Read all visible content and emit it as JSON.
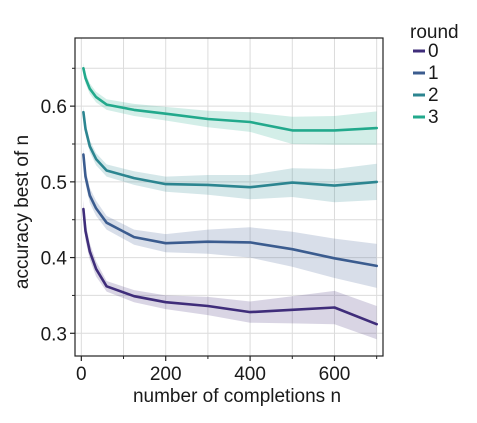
{
  "chart_data": {
    "type": "line",
    "title": "",
    "xlabel": "number of completions n",
    "ylabel": "accuracy best of n",
    "xlim": [
      -15,
      715
    ],
    "ylim": [
      0.27,
      0.69
    ],
    "xticks": [
      0,
      200,
      400,
      600
    ],
    "xtick_labels": [
      "0",
      "200",
      "400",
      "600"
    ],
    "yticks": [
      0.3,
      0.4,
      0.5,
      0.6
    ],
    "ytick_labels": [
      "0.3",
      "0.4",
      "0.5",
      "0.6"
    ],
    "x_minor_ticks": [
      100,
      300,
      500,
      700
    ],
    "y_minor_ticks": [
      0.35,
      0.45,
      0.55,
      0.65
    ],
    "grid": true,
    "legend": {
      "title": "round",
      "placement": "outside-right"
    },
    "series": [
      {
        "name": "0",
        "color": "#3f2d7a",
        "x": [
          5,
          10,
          20,
          35,
          60,
          125,
          200,
          300,
          400,
          500,
          600,
          700
        ],
        "y": [
          0.464,
          0.435,
          0.408,
          0.385,
          0.362,
          0.349,
          0.341,
          0.336,
          0.328,
          0.331,
          0.334,
          0.312
        ],
        "lower": [
          0.452,
          0.423,
          0.397,
          0.375,
          0.355,
          0.341,
          0.332,
          0.324,
          0.314,
          0.313,
          0.312,
          0.292
        ],
        "upper": [
          0.476,
          0.447,
          0.419,
          0.395,
          0.369,
          0.357,
          0.35,
          0.348,
          0.342,
          0.349,
          0.356,
          0.336
        ]
      },
      {
        "name": "1",
        "color": "#3b5c8f",
        "x": [
          5,
          10,
          20,
          35,
          60,
          125,
          200,
          300,
          400,
          500,
          600,
          700
        ],
        "y": [
          0.536,
          0.507,
          0.482,
          0.465,
          0.446,
          0.427,
          0.419,
          0.421,
          0.42,
          0.411,
          0.399,
          0.389
        ],
        "lower": [
          0.526,
          0.497,
          0.472,
          0.455,
          0.437,
          0.417,
          0.407,
          0.405,
          0.4,
          0.388,
          0.373,
          0.36
        ],
        "upper": [
          0.546,
          0.517,
          0.492,
          0.475,
          0.455,
          0.437,
          0.431,
          0.437,
          0.44,
          0.434,
          0.425,
          0.418
        ]
      },
      {
        "name": "2",
        "color": "#2c8590",
        "x": [
          5,
          10,
          20,
          35,
          60,
          125,
          200,
          300,
          400,
          500,
          600,
          700
        ],
        "y": [
          0.592,
          0.57,
          0.547,
          0.53,
          0.515,
          0.505,
          0.497,
          0.496,
          0.493,
          0.499,
          0.495,
          0.5
        ],
        "lower": [
          0.584,
          0.562,
          0.539,
          0.522,
          0.507,
          0.496,
          0.487,
          0.483,
          0.477,
          0.48,
          0.473,
          0.476
        ],
        "upper": [
          0.6,
          0.578,
          0.555,
          0.538,
          0.523,
          0.514,
          0.507,
          0.509,
          0.509,
          0.518,
          0.517,
          0.524
        ]
      },
      {
        "name": "3",
        "color": "#22a98c",
        "x": [
          5,
          10,
          20,
          35,
          60,
          125,
          200,
          300,
          400,
          500,
          600,
          700
        ],
        "y": [
          0.65,
          0.637,
          0.623,
          0.612,
          0.602,
          0.595,
          0.59,
          0.583,
          0.579,
          0.568,
          0.568,
          0.571
        ],
        "lower": [
          0.643,
          0.63,
          0.616,
          0.605,
          0.595,
          0.587,
          0.581,
          0.572,
          0.566,
          0.55,
          0.549,
          0.549
        ],
        "upper": [
          0.657,
          0.644,
          0.63,
          0.619,
          0.609,
          0.603,
          0.599,
          0.594,
          0.592,
          0.586,
          0.587,
          0.593
        ]
      }
    ]
  }
}
